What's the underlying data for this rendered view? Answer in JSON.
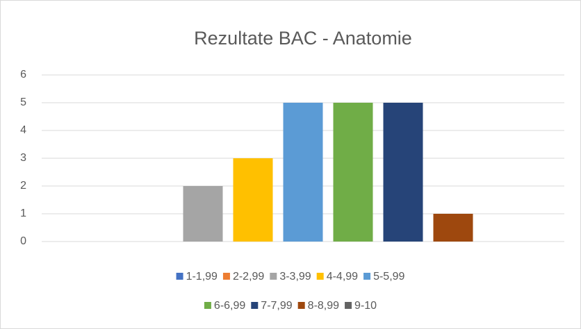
{
  "chart_data": {
    "type": "bar",
    "title": "Rezultate BAC - Anatomie",
    "series": [
      {
        "name": "1-1,99",
        "color": "#4472c4",
        "values": [
          0
        ]
      },
      {
        "name": "2-2,99",
        "color": "#ed7d31",
        "values": [
          0
        ]
      },
      {
        "name": "3-3,99",
        "color": "#a5a5a5",
        "values": [
          2
        ]
      },
      {
        "name": "4-4,99",
        "color": "#ffc000",
        "values": [
          3
        ]
      },
      {
        "name": "5-5,99",
        "color": "#5b9bd5",
        "values": [
          5
        ]
      },
      {
        "name": "6-6,99",
        "color": "#70ad47",
        "values": [
          5
        ]
      },
      {
        "name": "7-7,99",
        "color": "#264478",
        "values": [
          5
        ]
      },
      {
        "name": "8-8,99",
        "color": "#9e480e",
        "values": [
          1
        ]
      },
      {
        "name": "9-10",
        "color": "#636363",
        "values": [
          0
        ]
      }
    ],
    "ylim": [
      0,
      6
    ],
    "yticks": [
      0,
      1,
      2,
      3,
      4,
      5,
      6
    ],
    "grid": true,
    "legend": "bottom"
  }
}
